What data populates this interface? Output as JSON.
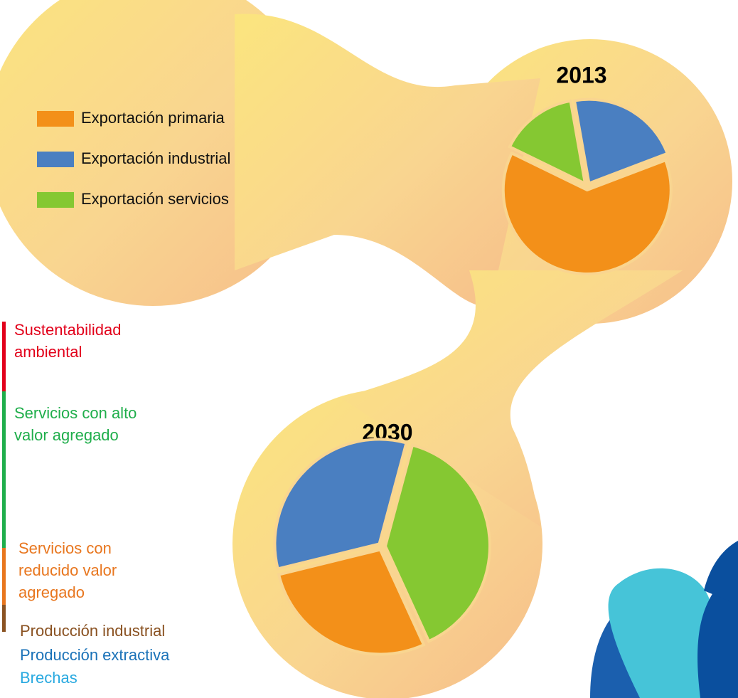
{
  "chart_data": [
    {
      "type": "pie",
      "title": "2013",
      "categories": [
        "Exportación primaria",
        "Exportación industrial",
        "Exportación servicios"
      ],
      "colors": [
        "#f39019",
        "#4a7fc1",
        "#85c832"
      ],
      "values": [
        63,
        22,
        15
      ]
    },
    {
      "type": "pie",
      "title": "2030",
      "categories": [
        "Exportación primaria",
        "Exportación industrial",
        "Exportación servicios"
      ],
      "colors": [
        "#f39019",
        "#4a7fc1",
        "#85c832"
      ],
      "values": [
        28,
        33,
        39
      ]
    }
  ],
  "side_labels": [
    {
      "lines": [
        "Sustentabilidad",
        "ambiental"
      ],
      "color": "#e2001a"
    },
    {
      "lines": [
        "Servicios con alto",
        "valor agregado"
      ],
      "color": "#1fae4b"
    },
    {
      "lines": [
        "Servicios con",
        "reducido valor",
        "agregado"
      ],
      "color": "#e8761e"
    },
    {
      "lines": [
        "Producción industrial"
      ],
      "color": "#8a5222"
    },
    {
      "lines": [
        "Producción extractiva"
      ],
      "color": "#1a72b8"
    },
    {
      "lines": [
        "Brechas"
      ],
      "color": "#28a9e0"
    }
  ]
}
